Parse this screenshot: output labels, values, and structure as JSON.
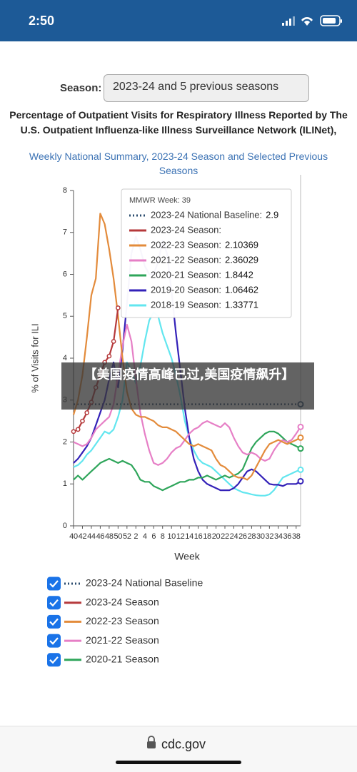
{
  "status_bar": {
    "time": "2:50"
  },
  "season_label": "Season:",
  "season_select": "2023-24 and 5 previous seasons",
  "chart_data": {
    "type": "line",
    "title": "Percentage of Outpatient Visits for Respiratory Illness Reported by The U.S. Outpatient Influenza-like Illness Surveillance Network (ILINet),",
    "subtitle": "Weekly National Summary, 2023-24 Season and Selected Previous Seasons",
    "x_label": "Week",
    "y_label": "% of Visits for ILI",
    "categories": [
      40,
      null,
      42,
      null,
      44,
      null,
      46,
      null,
      48,
      null,
      50,
      null,
      52,
      null,
      2,
      null,
      4,
      null,
      6,
      null,
      8,
      null,
      10,
      null,
      12,
      null,
      14,
      null,
      16,
      null,
      18,
      null,
      20,
      null,
      22,
      null,
      24,
      null,
      26,
      null,
      28,
      null,
      30,
      null,
      32,
      null,
      34,
      null,
      36,
      null,
      38,
      null
    ],
    "ylim": [
      0,
      8
    ],
    "yticks": [
      0,
      1,
      2,
      3,
      4,
      5,
      6,
      7,
      8
    ],
    "baseline": {
      "name": "2023-24 National Baseline",
      "color": "#2b4c6f",
      "value": 2.9
    },
    "series": [
      {
        "name": "2023-24 Season",
        "color": "#b5393b",
        "values": [
          2.25,
          2.3,
          2.5,
          2.7,
          2.95,
          3.3,
          3.6,
          3.9,
          4.05,
          4.4,
          5.2,
          null,
          null,
          null,
          null,
          null,
          null,
          null,
          null,
          null,
          null,
          null,
          null,
          null,
          null,
          null,
          null,
          null,
          null,
          null,
          null,
          null,
          null,
          null,
          null,
          null,
          null,
          null,
          null,
          null,
          null,
          null,
          null,
          null,
          null,
          null,
          null,
          null,
          null,
          null,
          null,
          null
        ]
      },
      {
        "name": "2022-23 Season",
        "color": "#e38b3b",
        "values": [
          2.65,
          3.0,
          3.6,
          4.5,
          5.5,
          5.9,
          7.45,
          7.2,
          6.6,
          5.9,
          5.0,
          4.0,
          3.2,
          2.8,
          2.65,
          2.6,
          2.6,
          2.55,
          2.5,
          2.4,
          2.35,
          2.35,
          2.3,
          2.25,
          2.15,
          2.05,
          1.95,
          1.9,
          1.95,
          1.9,
          1.85,
          1.8,
          1.6,
          1.45,
          1.4,
          1.3,
          1.2,
          1.15,
          1.15,
          1.1,
          1.2,
          1.4,
          1.6,
          1.8,
          1.95,
          2.0,
          2.05,
          2.0,
          1.95,
          2.0,
          2.05,
          2.10369
        ]
      },
      {
        "name": "2021-22 Season",
        "color": "#e67fc6",
        "values": [
          2.0,
          1.95,
          1.9,
          1.95,
          2.1,
          2.3,
          2.4,
          2.5,
          2.6,
          2.9,
          3.6,
          4.3,
          4.8,
          4.4,
          3.5,
          2.7,
          2.2,
          1.8,
          1.5,
          1.45,
          1.5,
          1.6,
          1.75,
          1.85,
          1.9,
          2.05,
          2.2,
          2.3,
          2.35,
          2.45,
          2.5,
          2.45,
          2.4,
          2.35,
          2.45,
          2.35,
          2.1,
          1.9,
          1.75,
          1.7,
          1.75,
          1.7,
          1.6,
          1.55,
          1.6,
          1.8,
          1.95,
          2.05,
          2.0,
          2.05,
          2.2,
          2.36029
        ]
      },
      {
        "name": "2020-21 Season",
        "color": "#2ea55a",
        "values": [
          1.1,
          1.2,
          1.1,
          1.2,
          1.3,
          1.4,
          1.5,
          1.55,
          1.6,
          1.55,
          1.5,
          1.55,
          1.5,
          1.45,
          1.3,
          1.1,
          1.05,
          1.05,
          0.95,
          0.9,
          0.85,
          0.9,
          0.95,
          1.0,
          1.05,
          1.05,
          1.1,
          1.1,
          1.15,
          1.15,
          1.2,
          1.15,
          1.1,
          1.15,
          1.2,
          1.15,
          1.2,
          1.25,
          1.35,
          1.6,
          1.85,
          2.0,
          2.1,
          2.2,
          2.25,
          2.25,
          2.2,
          2.1,
          2.0,
          1.95,
          1.9,
          1.8442
        ]
      },
      {
        "name": "2019-20 Season",
        "color": "#3321b8",
        "values": [
          1.5,
          1.6,
          1.75,
          1.9,
          2.1,
          2.4,
          2.7,
          3.0,
          3.5,
          3.9,
          3.3,
          4.2,
          5.3,
          6.5,
          6.9,
          6.6,
          6.2,
          6.0,
          6.0,
          6.3,
          6.8,
          6.5,
          5.6,
          4.6,
          3.7,
          2.8,
          2.1,
          1.6,
          1.3,
          1.1,
          1.0,
          0.95,
          0.9,
          0.85,
          0.85,
          0.85,
          0.9,
          1.0,
          1.15,
          1.3,
          1.35,
          1.3,
          1.2,
          1.1,
          1.0,
          0.98,
          0.98,
          0.95,
          1.0,
          1.0,
          1.0,
          1.06462
        ]
      },
      {
        "name": "2018-19 Season",
        "color": "#62e6ef",
        "values": [
          1.4,
          1.45,
          1.55,
          1.7,
          1.8,
          1.95,
          2.1,
          2.25,
          2.2,
          2.3,
          2.6,
          3.0,
          3.9,
          3.7,
          3.4,
          3.8,
          4.4,
          4.9,
          5.1,
          5.0,
          4.6,
          4.3,
          4.0,
          3.6,
          3.1,
          2.5,
          2.1,
          1.8,
          1.6,
          1.5,
          1.45,
          1.4,
          1.3,
          1.2,
          1.1,
          1.0,
          0.9,
          0.85,
          0.8,
          0.78,
          0.75,
          0.73,
          0.72,
          0.72,
          0.75,
          0.85,
          1.0,
          1.15,
          1.2,
          1.25,
          1.3,
          1.33771
        ]
      }
    ],
    "tooltip": {
      "title": "MMWR Week: 39",
      "rows": [
        {
          "label": "2023-24 National Baseline:",
          "value": 2.9
        },
        {
          "label": "2023-24 Season:"
        },
        {
          "label": "2022-23 Season:",
          "value": 2.10369
        },
        {
          "label": "2021-22 Season:",
          "value": 2.36029
        },
        {
          "label": "2020-21 Season:",
          "value": 1.8442
        },
        {
          "label": "2019-20 Season:",
          "value": 1.06462
        },
        {
          "label": "2018-19 Season:",
          "value": 1.33771
        }
      ]
    }
  },
  "overlay_caption": "【美国疫情高峰已过,美国疫情飙升】",
  "browser_bar": {
    "url": "cdc.gov"
  }
}
